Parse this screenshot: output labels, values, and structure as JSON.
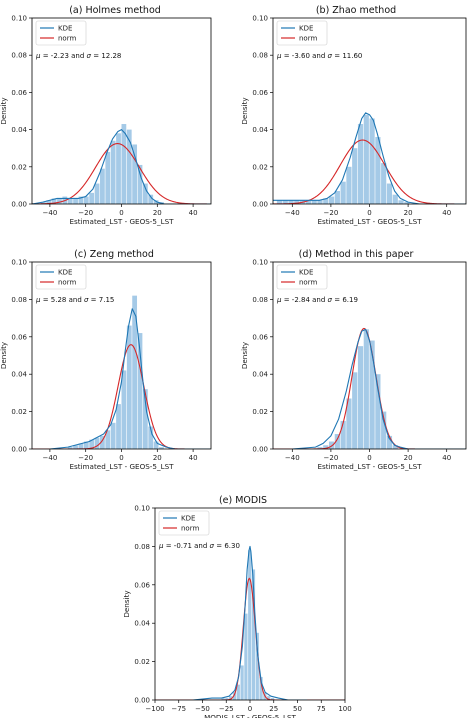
{
  "chart_data": [
    {
      "type": "bar",
      "title": "(a)  Holmes method",
      "xlabel": "Estimated_LST - GEOS-5_LST",
      "ylabel": "Density",
      "xlim": [
        -50,
        50
      ],
      "ylim": [
        0,
        0.1
      ],
      "xticks": [
        -40,
        -20,
        0,
        20,
        40
      ],
      "yticks": [
        0.0,
        0.02,
        0.04,
        0.06,
        0.08,
        0.1
      ],
      "ytick_labels": [
        "0.00",
        "0.02",
        "0.04",
        "0.06",
        "0.08",
        "0.10"
      ],
      "legend": [
        "KDE",
        "norm"
      ],
      "legend_position": "top-left",
      "annotation": {
        "mu": "-2.23",
        "sigma": "12.28"
      },
      "mu": -2.23,
      "sigma": 12.28,
      "bins": [
        -45,
        -42,
        -39,
        -36,
        -33,
        -30,
        -27,
        -24,
        -21,
        -18,
        -15,
        -12,
        -9,
        -6,
        -3,
        0,
        3,
        6,
        9,
        12,
        15,
        18,
        21
      ],
      "bin_width": 3,
      "hist_values": [
        0.001,
        0.002,
        0.003,
        0.003,
        0.004,
        0.003,
        0.003,
        0.004,
        0.004,
        0.006,
        0.011,
        0.019,
        0.028,
        0.034,
        0.038,
        0.043,
        0.04,
        0.032,
        0.021,
        0.011,
        0.005,
        0.002,
        0.001
      ],
      "kde_x": [
        -50,
        -44,
        -40,
        -36,
        -32,
        -28,
        -24,
        -20,
        -16,
        -12,
        -8,
        -5,
        -2,
        0,
        2,
        5,
        8,
        11,
        14,
        17,
        20,
        24,
        30,
        40,
        50
      ],
      "kde_y": [
        0.0,
        0.001,
        0.002,
        0.003,
        0.003,
        0.003,
        0.003,
        0.004,
        0.008,
        0.017,
        0.028,
        0.035,
        0.039,
        0.04,
        0.038,
        0.033,
        0.024,
        0.014,
        0.007,
        0.003,
        0.001,
        0.0,
        0.0,
        0.0,
        0.0
      ]
    },
    {
      "type": "bar",
      "title": "(b)  Zhao method",
      "xlabel": "Estimated_LST - GEOS-5_LST",
      "ylabel": "Density",
      "xlim": [
        -50,
        50
      ],
      "ylim": [
        0,
        0.1
      ],
      "xticks": [
        -40,
        -20,
        0,
        20,
        40
      ],
      "yticks": [
        0.0,
        0.02,
        0.04,
        0.06,
        0.08,
        0.1
      ],
      "ytick_labels": [
        "0.00",
        "0.02",
        "0.04",
        "0.06",
        "0.08",
        "0.10"
      ],
      "legend": [
        "KDE",
        "norm"
      ],
      "legend_position": "top-left",
      "annotation": {
        "mu": "-3.60",
        "sigma": "11.60"
      },
      "mu": -3.6,
      "sigma": 11.6,
      "bins": [
        -48,
        -45,
        -42,
        -39,
        -36,
        -33,
        -30,
        -27,
        -24,
        -21,
        -18,
        -15,
        -12,
        -9,
        -6,
        -3,
        0,
        3,
        6,
        9,
        12,
        15,
        18
      ],
      "bin_width": 3,
      "hist_values": [
        0.002,
        0.002,
        0.002,
        0.002,
        0.002,
        0.002,
        0.002,
        0.002,
        0.003,
        0.004,
        0.007,
        0.012,
        0.02,
        0.03,
        0.043,
        0.048,
        0.046,
        0.036,
        0.022,
        0.011,
        0.005,
        0.002,
        0.001
      ],
      "kde_x": [
        -50,
        -44,
        -38,
        -32,
        -26,
        -22,
        -18,
        -14,
        -10,
        -7,
        -4,
        -2,
        0,
        2,
        4,
        7,
        10,
        13,
        16,
        20,
        26,
        34,
        50
      ],
      "kde_y": [
        0.002,
        0.002,
        0.002,
        0.002,
        0.002,
        0.003,
        0.006,
        0.013,
        0.025,
        0.036,
        0.046,
        0.049,
        0.048,
        0.045,
        0.038,
        0.026,
        0.015,
        0.007,
        0.003,
        0.001,
        0.0,
        0.0,
        0.0
      ]
    },
    {
      "type": "bar",
      "title": "(c)  Zeng method",
      "xlabel": "Estimated_LST - GEOS-5_LST",
      "ylabel": "Density",
      "xlim": [
        -50,
        50
      ],
      "ylim": [
        0,
        0.1
      ],
      "xticks": [
        -40,
        -20,
        0,
        20,
        40
      ],
      "yticks": [
        0.0,
        0.02,
        0.04,
        0.06,
        0.08,
        0.1
      ],
      "ytick_labels": [
        "0.00",
        "0.02",
        "0.04",
        "0.06",
        "0.08",
        "0.10"
      ],
      "legend": [
        "KDE",
        "norm"
      ],
      "legend_position": "top-left",
      "annotation": {
        "mu": "5.28",
        "sigma": "7.15"
      },
      "mu": 5.28,
      "sigma": 7.15,
      "bins": [
        -30,
        -27,
        -24,
        -21,
        -18,
        -15,
        -12,
        -9,
        -6,
        -3,
        0,
        3,
        6,
        9,
        12,
        15,
        18,
        21
      ],
      "bin_width": 3,
      "hist_values": [
        0.001,
        0.002,
        0.003,
        0.004,
        0.005,
        0.006,
        0.007,
        0.01,
        0.014,
        0.024,
        0.042,
        0.066,
        0.082,
        0.062,
        0.032,
        0.012,
        0.004,
        0.001
      ],
      "kde_x": [
        -40,
        -30,
        -26,
        -22,
        -18,
        -14,
        -10,
        -6,
        -3,
        0,
        2,
        4,
        6,
        8,
        10,
        12,
        14,
        17,
        20,
        25,
        30,
        50
      ],
      "kde_y": [
        0.0,
        0.001,
        0.002,
        0.003,
        0.004,
        0.006,
        0.008,
        0.013,
        0.021,
        0.036,
        0.052,
        0.066,
        0.075,
        0.071,
        0.055,
        0.036,
        0.02,
        0.008,
        0.003,
        0.001,
        0.0,
        0.0
      ]
    },
    {
      "type": "bar",
      "title": "(d)  Method in this paper",
      "xlabel": "Estimated_LST - GEOS-5_LST",
      "ylabel": "Density",
      "xlim": [
        -50,
        50
      ],
      "ylim": [
        0,
        0.1
      ],
      "xticks": [
        -40,
        -20,
        0,
        20,
        40
      ],
      "yticks": [
        0.0,
        0.02,
        0.04,
        0.06,
        0.08,
        0.1
      ],
      "ytick_labels": [
        "0.00",
        "0.02",
        "0.04",
        "0.06",
        "0.08",
        "0.10"
      ],
      "legend": [
        "KDE",
        "norm"
      ],
      "legend_position": "top-left",
      "annotation": {
        "mu": "-2.84",
        "sigma": "6.19"
      },
      "mu": -2.84,
      "sigma": 6.19,
      "bins": [
        -27,
        -24,
        -21,
        -18,
        -15,
        -12,
        -9,
        -6,
        -3,
        0,
        3,
        6,
        9,
        12
      ],
      "bin_width": 3,
      "hist_values": [
        0.001,
        0.002,
        0.004,
        0.008,
        0.015,
        0.027,
        0.041,
        0.055,
        0.064,
        0.058,
        0.04,
        0.02,
        0.007,
        0.002
      ],
      "kde_x": [
        -40,
        -28,
        -24,
        -20,
        -16,
        -12,
        -9,
        -6,
        -4,
        -2,
        0,
        2,
        4,
        7,
        10,
        13,
        16,
        20,
        50
      ],
      "kde_y": [
        0.0,
        0.001,
        0.003,
        0.007,
        0.016,
        0.031,
        0.045,
        0.057,
        0.063,
        0.064,
        0.058,
        0.047,
        0.034,
        0.016,
        0.006,
        0.002,
        0.001,
        0.0,
        0.0
      ]
    },
    {
      "type": "bar",
      "title": "(e)  MODIS",
      "xlabel": "MODIS_LST - GEOS-5_LST",
      "ylabel": "Density",
      "xlim": [
        -100,
        100
      ],
      "ylim": [
        0,
        0.1
      ],
      "xticks": [
        -100,
        -75,
        -50,
        -25,
        0,
        25,
        50,
        75,
        100
      ],
      "yticks": [
        0.0,
        0.02,
        0.04,
        0.06,
        0.08,
        0.1
      ],
      "ytick_labels": [
        "0.00",
        "0.02",
        "0.04",
        "0.06",
        "0.08",
        "0.10"
      ],
      "legend": [
        "KDE",
        "norm"
      ],
      "legend_position": "top-left",
      "annotation": {
        "mu": "-0.71",
        "sigma": "6.30"
      },
      "mu": -0.71,
      "sigma": 6.3,
      "bins": [
        -30,
        -26,
        -22,
        -18,
        -14,
        -10,
        -6,
        -2,
        2,
        6,
        10,
        14,
        18,
        22,
        26
      ],
      "bin_width": 4,
      "hist_values": [
        0.001,
        0.001,
        0.002,
        0.004,
        0.008,
        0.018,
        0.045,
        0.078,
        0.068,
        0.035,
        0.012,
        0.004,
        0.002,
        0.001,
        0.0
      ],
      "kde_x": [
        -60,
        -40,
        -30,
        -22,
        -16,
        -12,
        -8,
        -5,
        -3,
        -1,
        0,
        1,
        3,
        5,
        8,
        12,
        16,
        22,
        30,
        40,
        60
      ],
      "kde_y": [
        0.0,
        0.001,
        0.001,
        0.002,
        0.005,
        0.012,
        0.028,
        0.05,
        0.068,
        0.078,
        0.08,
        0.077,
        0.065,
        0.046,
        0.024,
        0.009,
        0.004,
        0.002,
        0.001,
        0.0,
        0.0
      ]
    }
  ]
}
